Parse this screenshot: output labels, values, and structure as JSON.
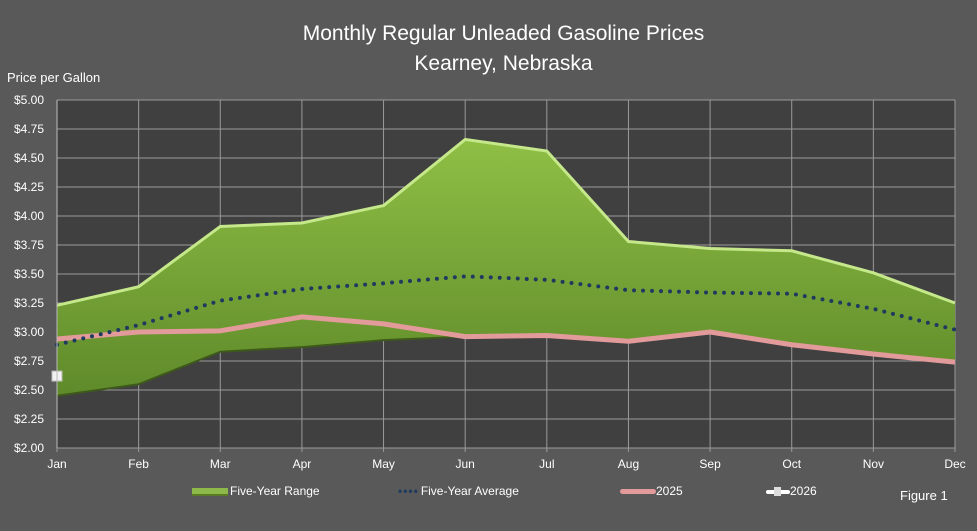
{
  "chart_data": {
    "type": "area",
    "title": "Monthly Regular Unleaded Gasoline Prices",
    "subtitle": "Kearney, Nebraska",
    "ylabel": "Price per Gallon",
    "xlabel": "",
    "ylim": [
      2.0,
      5.0
    ],
    "ytick_labels": [
      "$2.00",
      "$2.25",
      "$2.50",
      "$2.75",
      "$3.00",
      "$3.25",
      "$3.50",
      "$3.75",
      "$4.00",
      "$4.25",
      "$4.50",
      "$4.75",
      "$5.00"
    ],
    "categories": [
      "Jan",
      "Feb",
      "Mar",
      "Apr",
      "May",
      "Jun",
      "Jul",
      "Aug",
      "Sep",
      "Oct",
      "Nov",
      "Dec"
    ],
    "grid": true,
    "legend_position": "bottom",
    "series": [
      {
        "name": "Five-Year Range",
        "type": "range",
        "color": "#7ea63a",
        "high": [
          3.23,
          3.39,
          3.91,
          3.94,
          4.09,
          4.66,
          4.56,
          3.78,
          3.72,
          3.7,
          3.51,
          3.25
        ],
        "low": [
          2.45,
          2.55,
          2.83,
          2.87,
          2.93,
          2.96,
          2.97,
          2.93,
          2.99,
          2.89,
          2.81,
          2.74
        ]
      },
      {
        "name": "Five-Year Average",
        "type": "line",
        "color": "#1f3a5f",
        "style": "dotted",
        "values": [
          2.89,
          3.06,
          3.27,
          3.37,
          3.42,
          3.48,
          3.45,
          3.36,
          3.34,
          3.33,
          3.2,
          3.02
        ]
      },
      {
        "name": "2025",
        "type": "line",
        "color": "#e39a9a",
        "values": [
          2.94,
          3.0,
          3.01,
          3.13,
          3.07,
          2.96,
          2.97,
          2.92,
          3.0,
          2.89,
          2.81,
          2.74
        ]
      },
      {
        "name": "2026",
        "type": "line",
        "color": "#ffffff",
        "values": [
          2.62,
          null,
          null,
          null,
          null,
          null,
          null,
          null,
          null,
          null,
          null,
          null
        ]
      }
    ],
    "annotation": "Figure 1"
  }
}
